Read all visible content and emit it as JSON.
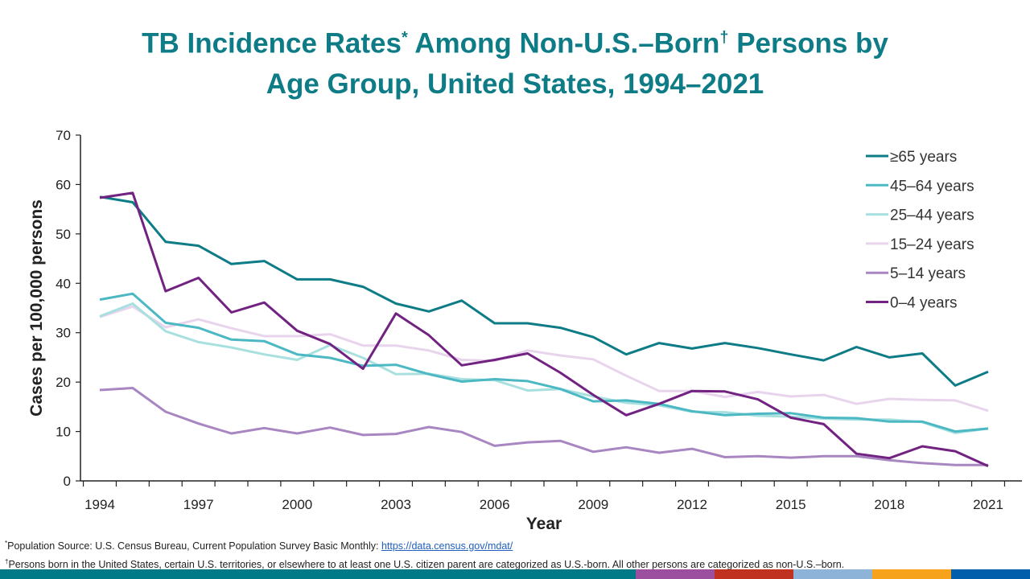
{
  "title": {
    "line1_a": "TB Incidence Rates",
    "line1_sup1": "*",
    "line1_b": " Among Non-U.S.–Born",
    "line1_sup2": "†",
    "line1_c": " Persons by",
    "line2": "Age Group, United States, 1994–2021"
  },
  "chart_data": {
    "type": "line",
    "title": "TB Incidence Rates Among Non-U.S.–Born Persons by Age Group, United States, 1994–2021",
    "xlabel": "Year",
    "ylabel": "Cases per 100,000 persons",
    "x": [
      1994,
      1995,
      1996,
      1997,
      1998,
      1999,
      2000,
      2001,
      2002,
      2003,
      2004,
      2005,
      2006,
      2007,
      2008,
      2009,
      2010,
      2011,
      2012,
      2013,
      2014,
      2015,
      2016,
      2017,
      2018,
      2019,
      2020,
      2021
    ],
    "xticks": [
      "1994",
      "1997",
      "2000",
      "2003",
      "2006",
      "2009",
      "2012",
      "2015",
      "2018",
      "2021"
    ],
    "yticks": [
      "0",
      "10",
      "20",
      "30",
      "40",
      "50",
      "60",
      "70"
    ],
    "ylim": [
      0,
      70
    ],
    "grid": false,
    "legend_position": "top-right",
    "series": [
      {
        "name": "≥65 years",
        "color": "#0e7c86",
        "values": [
          57.5,
          56.4,
          48.4,
          47.6,
          43.9,
          44.5,
          40.8,
          40.8,
          39.3,
          35.9,
          34.3,
          36.5,
          31.9,
          31.9,
          31.0,
          29.1,
          25.6,
          27.9,
          26.8,
          27.9,
          26.9,
          25.6,
          24.4,
          27.1,
          25.0,
          25.8,
          19.3,
          22.1
        ]
      },
      {
        "name": "45–64 years",
        "color": "#4bb8c4",
        "values": [
          36.7,
          37.9,
          32.0,
          31.0,
          28.6,
          28.3,
          25.6,
          24.9,
          23.3,
          23.5,
          21.6,
          20.1,
          20.6,
          20.2,
          18.6,
          16.1,
          16.3,
          15.6,
          14.1,
          13.3,
          13.6,
          13.7,
          12.8,
          12.7,
          12.0,
          12.0,
          10.0,
          10.6
        ]
      },
      {
        "name": "25–44 years",
        "color": "#a8e0e0",
        "values": [
          33.3,
          35.9,
          30.3,
          28.1,
          27.0,
          25.6,
          24.5,
          27.5,
          24.9,
          21.6,
          21.7,
          20.6,
          20.4,
          18.3,
          18.6,
          17.1,
          15.8,
          15.3,
          14.0,
          13.9,
          13.2,
          13.0,
          12.6,
          12.4,
          12.4,
          11.9,
          9.7,
          10.6
        ]
      },
      {
        "name": "15–24 years",
        "color": "#e8d4ec",
        "values": [
          33.2,
          35.3,
          31.1,
          32.7,
          30.9,
          29.3,
          29.3,
          29.7,
          27.4,
          27.4,
          26.4,
          24.5,
          24.3,
          26.4,
          25.4,
          24.6,
          21.3,
          18.2,
          18.2,
          17.0,
          18.0,
          17.1,
          17.4,
          15.6,
          16.6,
          16.4,
          16.3,
          14.2
        ]
      },
      {
        "name": "5–14 years",
        "color": "#a886c2",
        "values": [
          18.4,
          18.8,
          14.0,
          11.6,
          9.6,
          10.7,
          9.6,
          10.8,
          9.3,
          9.5,
          10.9,
          9.9,
          7.1,
          7.8,
          8.1,
          5.9,
          6.8,
          5.7,
          6.5,
          4.8,
          5.0,
          4.7,
          5.0,
          5.0,
          4.2,
          3.6,
          3.2,
          3.2
        ]
      },
      {
        "name": "0–4 years",
        "color": "#722281",
        "values": [
          57.3,
          58.3,
          38.4,
          41.1,
          34.1,
          36.1,
          30.4,
          27.7,
          22.7,
          33.9,
          29.5,
          23.4,
          24.5,
          25.8,
          21.9,
          17.4,
          13.3,
          15.6,
          18.2,
          18.1,
          16.5,
          12.8,
          11.5,
          5.5,
          4.6,
          7.0,
          6.0,
          3.0
        ]
      }
    ]
  },
  "footnotes": {
    "fn1_mark": "*",
    "fn1_text": "Population Source: U.S. Census Bureau, Current Population Survey Basic Monthly: ",
    "fn1_link": "https://data.census.gov/mdat/",
    "fn2_mark": "†",
    "fn2_text": "Persons born  in the United States, certain U.S. territories, or elsewhere to at least one U.S. citizen parent are categorized as U.S.-born. All other persons are categorized as non-U.S.–born."
  },
  "footer_band_colors": [
    "#007a87",
    "#9b4f9e",
    "#c0311f",
    "#8db3d9",
    "#f6a21b",
    "#005eaa"
  ]
}
